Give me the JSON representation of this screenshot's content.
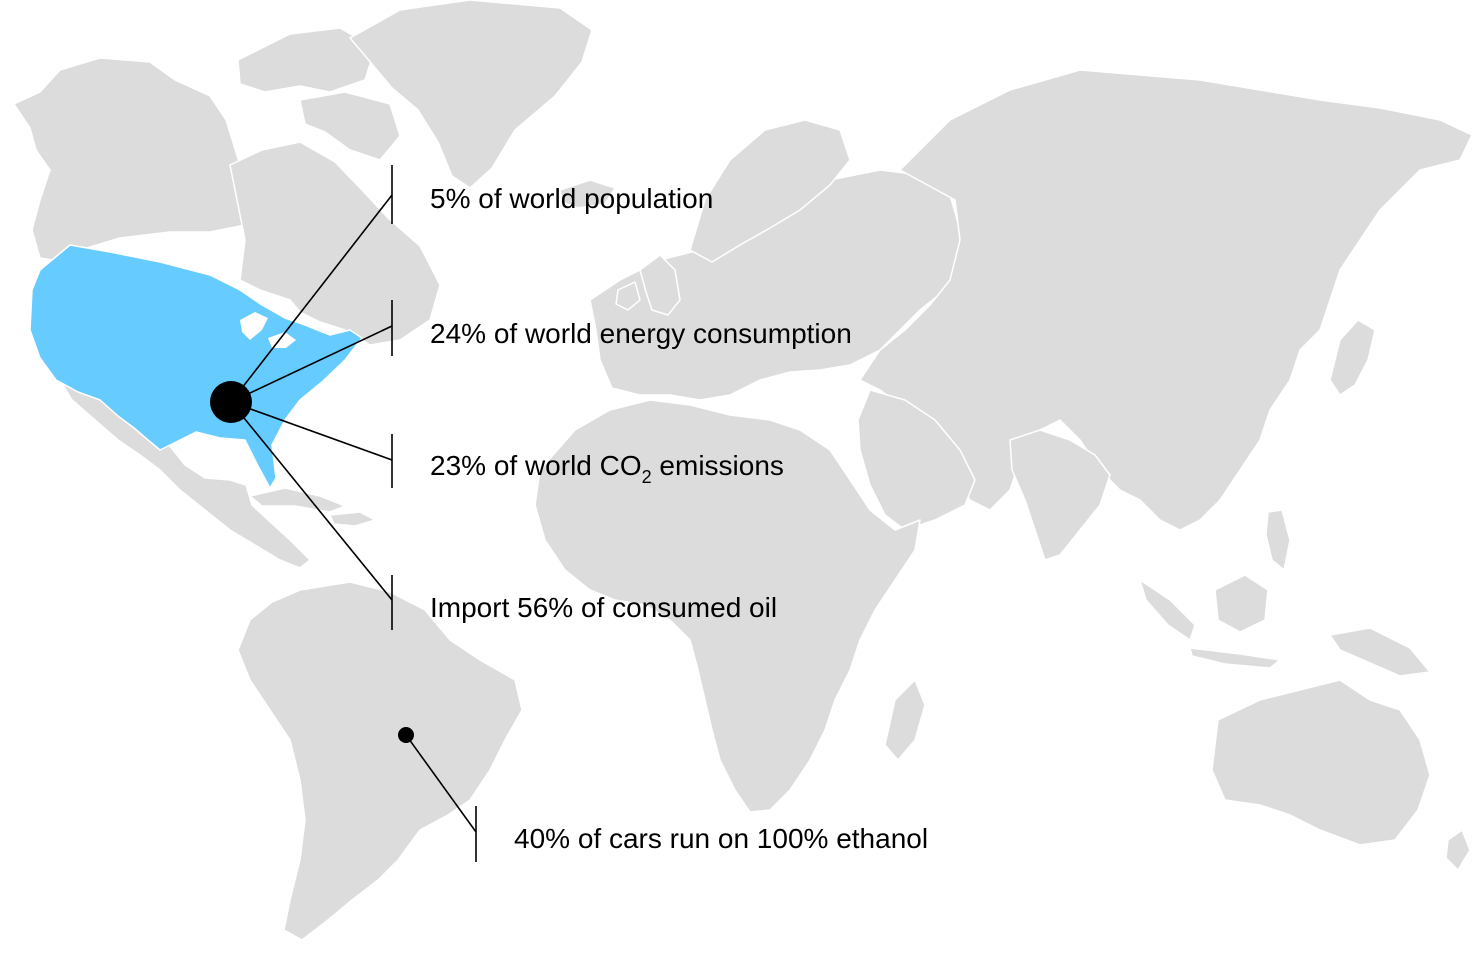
{
  "colors": {
    "land": "#dcdcdc",
    "highlight_usa": "#66ccff",
    "leader": "#000000",
    "text": "#000000"
  },
  "callouts": {
    "population": "5% of world population",
    "energy": "24% of world energy consumption",
    "co2_before": "23% of world CO",
    "co2_sub": "2",
    "co2_after": " emissions",
    "oil": "Import 56% of consumed oil",
    "ethanol": "40% of cars run on 100% ethanol"
  }
}
